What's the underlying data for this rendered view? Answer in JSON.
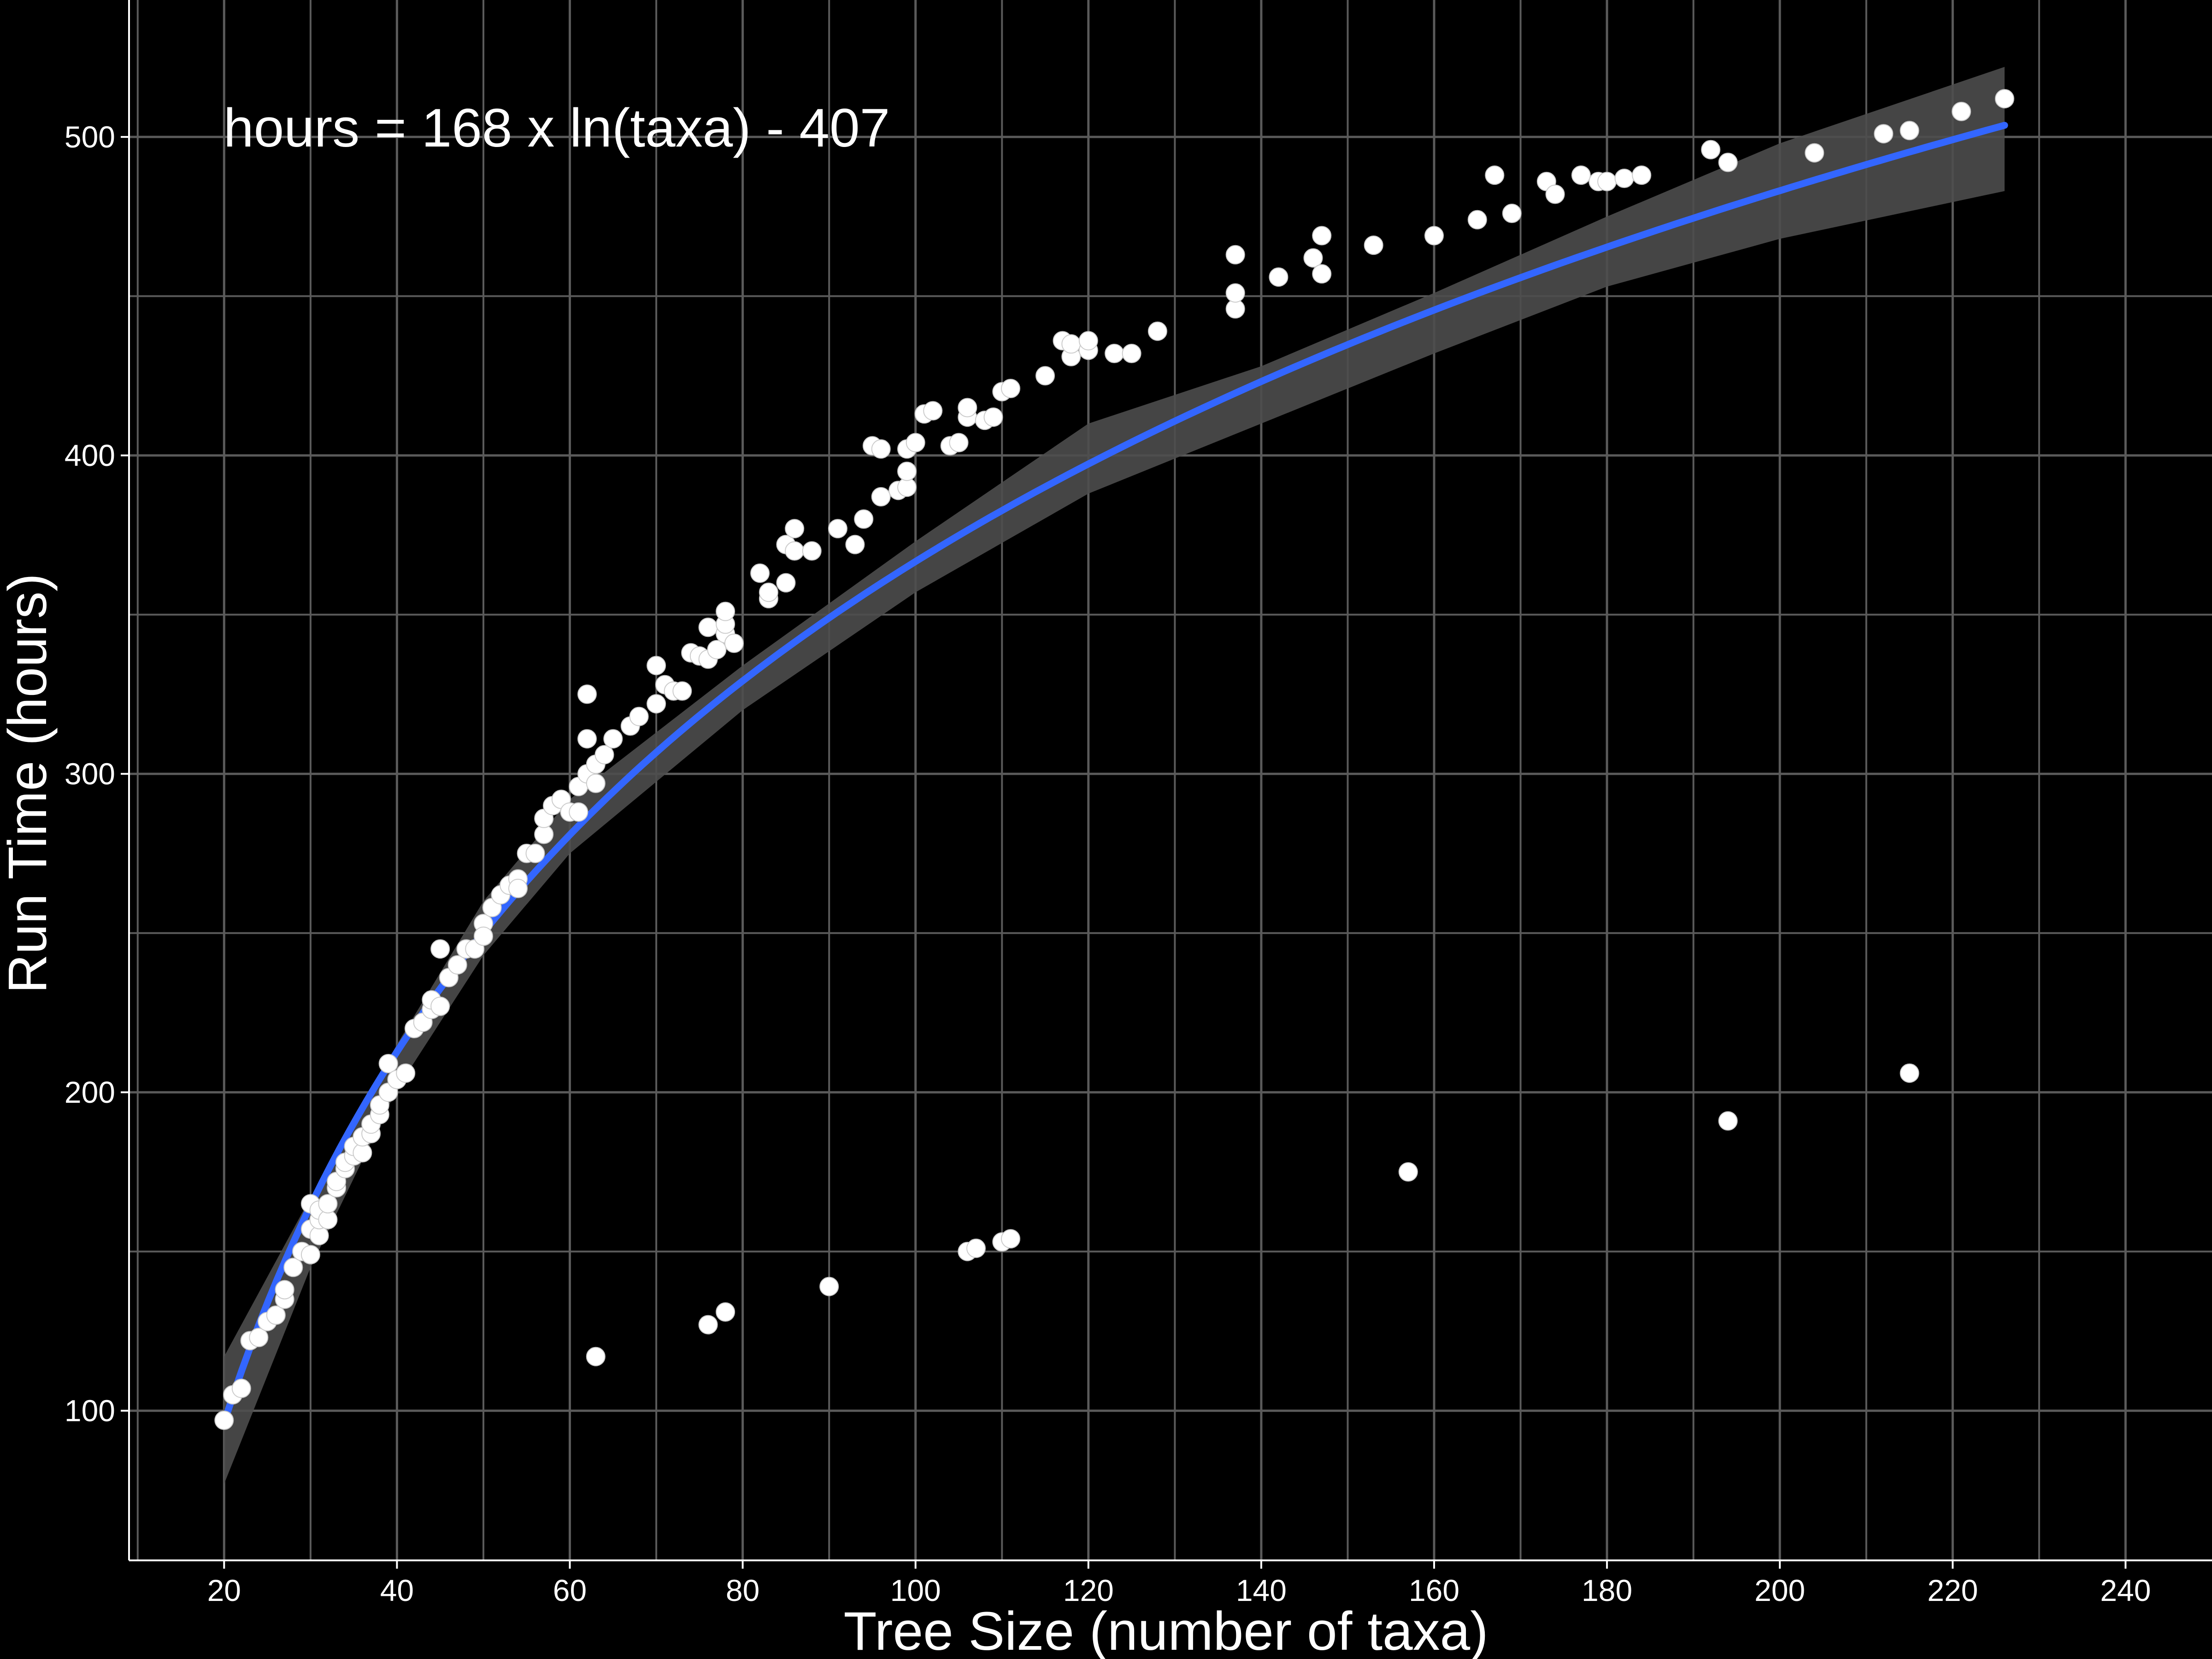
{
  "chart_data": {
    "type": "scatter",
    "title": "",
    "annotation": "hours = 168 x ln(taxa) - 407",
    "xlabel": "Tree Size (number of taxa)",
    "ylabel": "Run Time (hours)",
    "xlim": [
      9,
      250
    ],
    "ylim": [
      53,
      543
    ],
    "xticks": [
      20,
      40,
      60,
      80,
      100,
      120,
      140,
      160,
      180,
      200,
      220,
      240
    ],
    "xtick_labels": [
      "20",
      "40",
      "60",
      "80",
      "100",
      "120",
      "140",
      "160",
      "180",
      "200",
      "220",
      "240"
    ],
    "yticks": [
      100,
      200,
      300,
      400,
      500
    ],
    "ytick_labels": [
      "100",
      "200",
      "300",
      "400",
      "500"
    ],
    "grid": true,
    "background": "#000000",
    "point_color": "#ffffff",
    "fit_color": "#3366ff",
    "band_color": "#4d4d4d",
    "gridline_color": "#5a5a5a",
    "fit": {
      "model": "logarithmic",
      "a": 168,
      "b": -407,
      "x_range": [
        20,
        226
      ],
      "band": [
        [
          20,
          77,
          117
        ],
        [
          30,
          145,
          167
        ],
        [
          40,
          201,
          215
        ],
        [
          50,
          243,
          260
        ],
        [
          60,
          275,
          292
        ],
        [
          80,
          320,
          334
        ],
        [
          100,
          357,
          373
        ],
        [
          120,
          388,
          410
        ],
        [
          140,
          410,
          428
        ],
        [
          160,
          432,
          451
        ],
        [
          180,
          453,
          475
        ],
        [
          200,
          468,
          498
        ],
        [
          226,
          483,
          522
        ]
      ]
    },
    "series": [
      {
        "points": [
          [
            20,
            97
          ],
          [
            21,
            105
          ],
          [
            22,
            107
          ],
          [
            23,
            122
          ],
          [
            24,
            123
          ],
          [
            25,
            128
          ],
          [
            26,
            130
          ],
          [
            27,
            135
          ],
          [
            27,
            138
          ],
          [
            28,
            145
          ],
          [
            29,
            150
          ],
          [
            30,
            149
          ],
          [
            30,
            157
          ],
          [
            30,
            165
          ],
          [
            31,
            155
          ],
          [
            31,
            160
          ],
          [
            31,
            163
          ],
          [
            32,
            160
          ],
          [
            32,
            165
          ],
          [
            33,
            170
          ],
          [
            33,
            172
          ],
          [
            34,
            176
          ],
          [
            34,
            178
          ],
          [
            35,
            180
          ],
          [
            35,
            183
          ],
          [
            36,
            181
          ],
          [
            36,
            186
          ],
          [
            37,
            187
          ],
          [
            37,
            190
          ],
          [
            38,
            193
          ],
          [
            38,
            196
          ],
          [
            39,
            200
          ],
          [
            39,
            209
          ],
          [
            40,
            204
          ],
          [
            41,
            206
          ],
          [
            42,
            220
          ],
          [
            43,
            222
          ],
          [
            44,
            226
          ],
          [
            44,
            229
          ],
          [
            45,
            227
          ],
          [
            45,
            245
          ],
          [
            46,
            236
          ],
          [
            47,
            240
          ],
          [
            48,
            245
          ],
          [
            49,
            245
          ],
          [
            50,
            253
          ],
          [
            50,
            249
          ],
          [
            51,
            258
          ],
          [
            52,
            262
          ],
          [
            53,
            265
          ],
          [
            54,
            267
          ],
          [
            54,
            264
          ],
          [
            55,
            275
          ],
          [
            56,
            275
          ],
          [
            57,
            281
          ],
          [
            57,
            286
          ],
          [
            58,
            290
          ],
          [
            59,
            292
          ],
          [
            60,
            288
          ],
          [
            61,
            288
          ],
          [
            61,
            296
          ],
          [
            62,
            300
          ],
          [
            62,
            311
          ],
          [
            62,
            325
          ],
          [
            63,
            297
          ],
          [
            63,
            303
          ],
          [
            64,
            306
          ],
          [
            65,
            311
          ],
          [
            67,
            315
          ],
          [
            68,
            318
          ],
          [
            70,
            322
          ],
          [
            70,
            334
          ],
          [
            71,
            328
          ],
          [
            72,
            326
          ],
          [
            73,
            326
          ],
          [
            74,
            338
          ],
          [
            75,
            337
          ],
          [
            76,
            336
          ],
          [
            76,
            346
          ],
          [
            77,
            339
          ],
          [
            78,
            344
          ],
          [
            78,
            347
          ],
          [
            78,
            351
          ],
          [
            79,
            341
          ],
          [
            82,
            363
          ],
          [
            83,
            355
          ],
          [
            83,
            357
          ],
          [
            85,
            360
          ],
          [
            85,
            372
          ],
          [
            86,
            370
          ],
          [
            86,
            377
          ],
          [
            88,
            370
          ],
          [
            91,
            377
          ],
          [
            93,
            372
          ],
          [
            94,
            380
          ],
          [
            95,
            403
          ],
          [
            96,
            387
          ],
          [
            96,
            402
          ],
          [
            98,
            389
          ],
          [
            99,
            390
          ],
          [
            99,
            395
          ],
          [
            99,
            402
          ],
          [
            100,
            404
          ],
          [
            101,
            413
          ],
          [
            102,
            414
          ],
          [
            104,
            403
          ],
          [
            105,
            404
          ],
          [
            106,
            412
          ],
          [
            106,
            415
          ],
          [
            108,
            411
          ],
          [
            109,
            412
          ],
          [
            110,
            420
          ],
          [
            111,
            421
          ],
          [
            115,
            425
          ],
          [
            117,
            436
          ],
          [
            118,
            431
          ],
          [
            118,
            435
          ],
          [
            120,
            433
          ],
          [
            120,
            436
          ],
          [
            123,
            432
          ],
          [
            125,
            432
          ],
          [
            128,
            439
          ],
          [
            137,
            446
          ],
          [
            137,
            451
          ],
          [
            137,
            463
          ],
          [
            142,
            456
          ],
          [
            146,
            462
          ],
          [
            147,
            457
          ],
          [
            147,
            469
          ],
          [
            153,
            466
          ],
          [
            160,
            469
          ],
          [
            165,
            474
          ],
          [
            167,
            488
          ],
          [
            169,
            476
          ],
          [
            173,
            486
          ],
          [
            174,
            482
          ],
          [
            177,
            488
          ],
          [
            179,
            486
          ],
          [
            180,
            486
          ],
          [
            182,
            487
          ],
          [
            184,
            488
          ],
          [
            192,
            496
          ],
          [
            194,
            492
          ],
          [
            204,
            495
          ],
          [
            212,
            501
          ],
          [
            215,
            502
          ],
          [
            221,
            508
          ],
          [
            226,
            512
          ],
          [
            63,
            117
          ],
          [
            76,
            127
          ],
          [
            78,
            131
          ],
          [
            90,
            139
          ],
          [
            106,
            150
          ],
          [
            107,
            151
          ],
          [
            110,
            153
          ],
          [
            111,
            154
          ],
          [
            157,
            175
          ],
          [
            194,
            191
          ],
          [
            215,
            206
          ]
        ]
      }
    ]
  }
}
